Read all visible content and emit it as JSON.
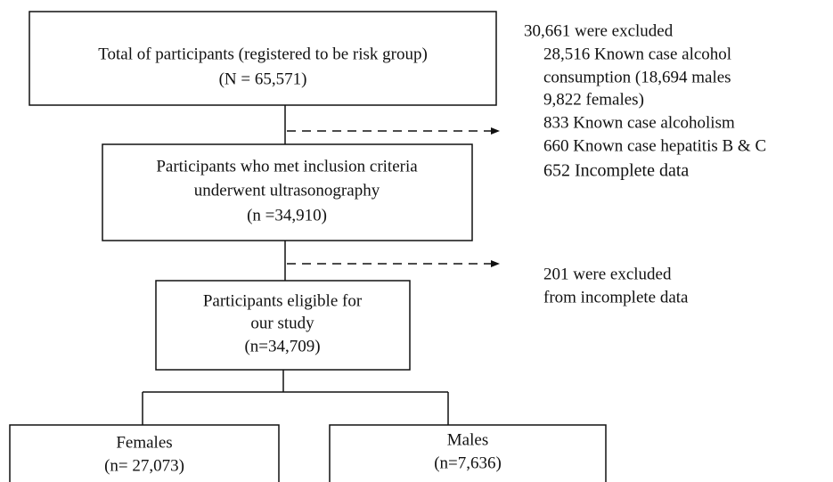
{
  "nodes": [
    {
      "lines": [
        "Total of participants (registered to be risk group)",
        "(N = 65,571)"
      ]
    },
    {
      "lines": [
        "Participants who met inclusion criteria",
        "underwent ultrasonography",
        "(n =34,910)"
      ]
    },
    {
      "lines": [
        "Participants eligible for",
        "our study",
        "(n=34,709)"
      ]
    },
    {
      "lines": [
        "Females",
        "(n= 27,073)"
      ]
    },
    {
      "lines": [
        "Males",
        "(n=7,636)"
      ]
    }
  ],
  "exclusions": [
    {
      "heading": "30,661 were excluded",
      "lines": [
        "28,516 Known case alcohol",
        "consumption (18,694 males",
        "9,822 females)",
        "833 Known case alcoholism",
        "660 Known case hepatitis B & C",
        "652 Incomplete data"
      ]
    },
    {
      "lines": [
        "201 were excluded",
        "from incomplete data"
      ]
    }
  ]
}
